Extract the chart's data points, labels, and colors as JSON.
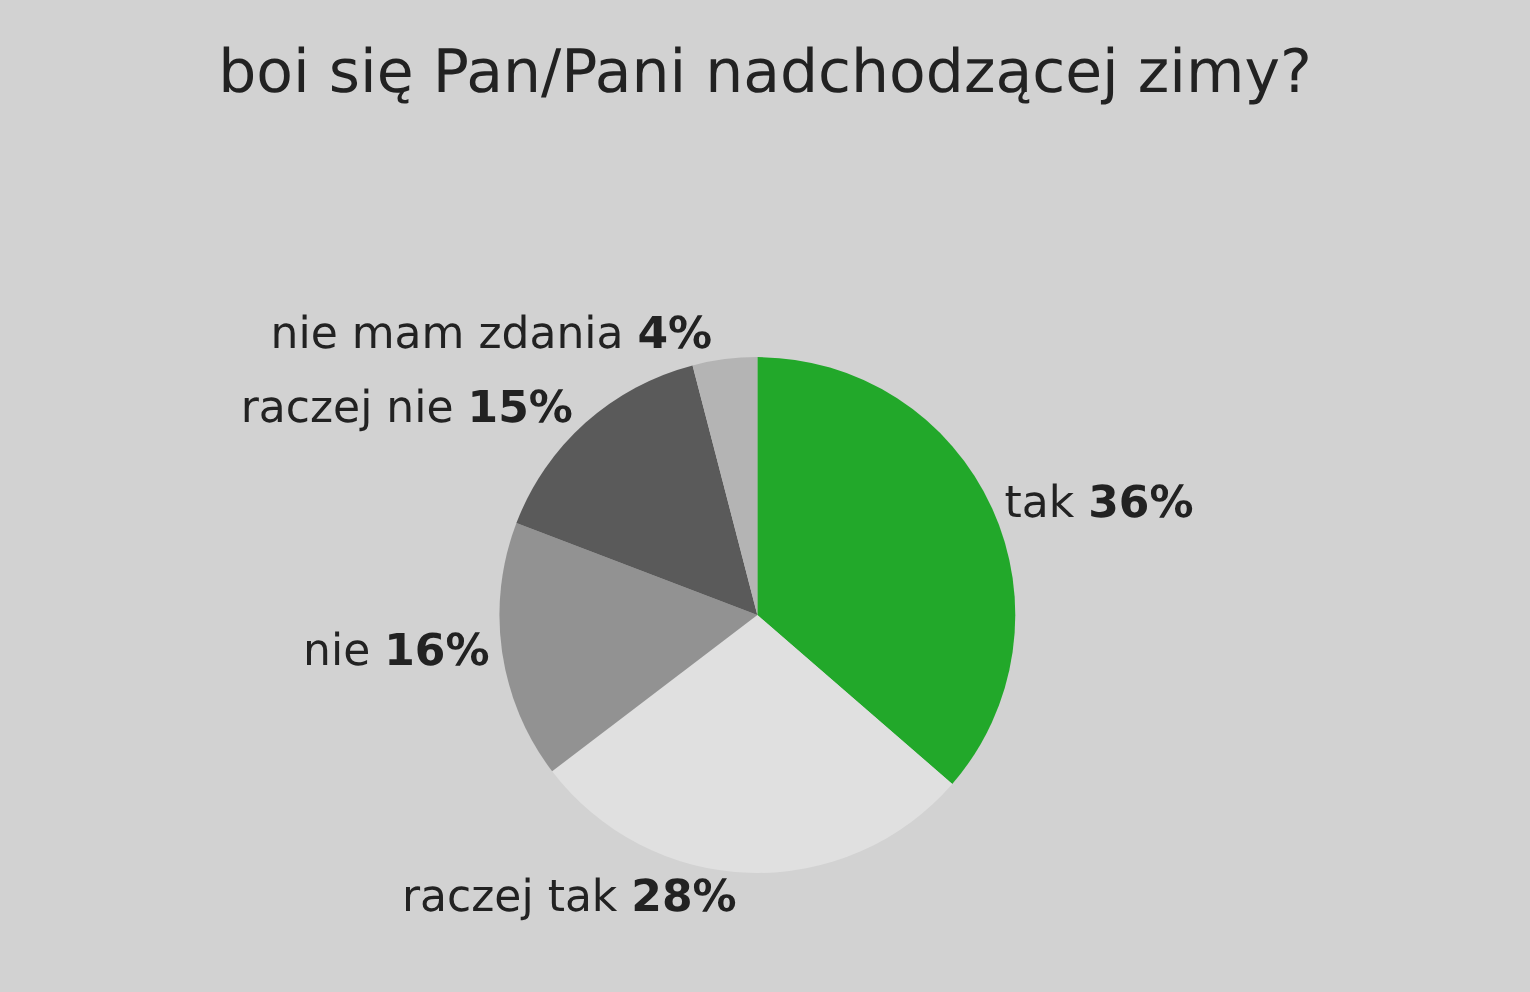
{
  "chart_data": {
    "type": "pie",
    "title": "boi się Pan/Pani nadchodzącej zimy?",
    "categories": [
      "tak",
      "raczej tak",
      "nie",
      "raczej nie",
      "nie mam zdania"
    ],
    "values": [
      36,
      28,
      16,
      15,
      4
    ],
    "value_labels": [
      "36%",
      "28%",
      "16%",
      "15%",
      "4%"
    ],
    "colors": [
      "#22a82a",
      "#e0e0e0",
      "#929292",
      "#5a5a5a",
      "#b4b4b4"
    ],
    "legend": false
  }
}
